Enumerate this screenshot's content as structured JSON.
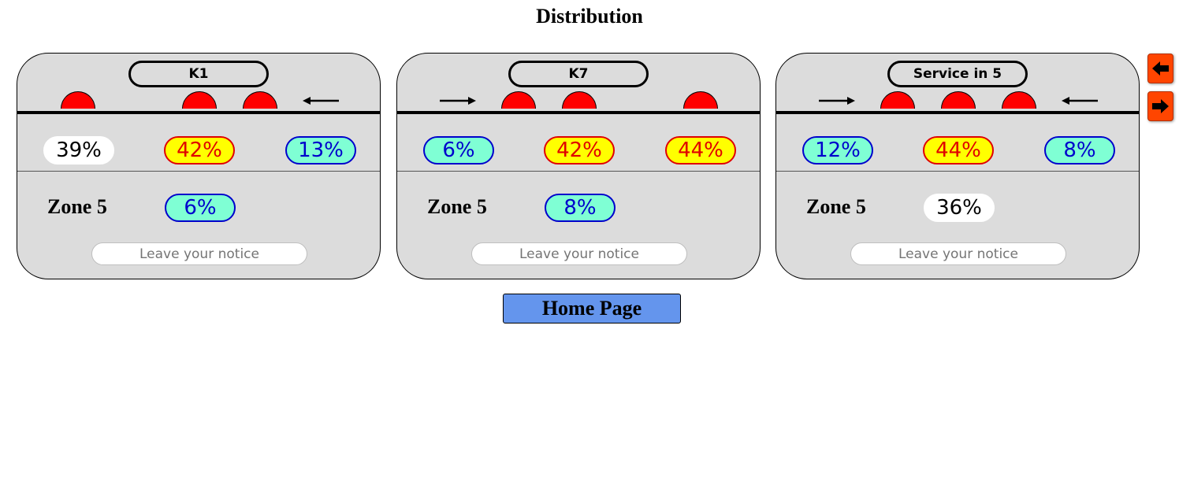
{
  "page": {
    "title": "Distribution"
  },
  "panels": [
    {
      "name": "K1",
      "row1": [
        "39%",
        "42%",
        "13%"
      ],
      "zone_label": "Zone 5",
      "zone_value": "6%",
      "notice_placeholder": "Leave your notice"
    },
    {
      "name": "K7",
      "row1": [
        "6%",
        "42%",
        "44%"
      ],
      "zone_label": "Zone 5",
      "zone_value": "8%",
      "notice_placeholder": "Leave your notice"
    },
    {
      "name": "Service in 5",
      "row1": [
        "12%",
        "44%",
        "8%"
      ],
      "zone_label": "Zone 5",
      "zone_value": "36%",
      "notice_placeholder": "Leave your notice"
    }
  ],
  "nav": {
    "prev_icon": "arrow-left-icon",
    "next_icon": "arrow-right-icon"
  },
  "home": {
    "label": "Home Page"
  },
  "colors": {
    "dome": "#ff0000",
    "cyan_fill": "#7fffd4",
    "yellow_fill": "#ffff00",
    "nav_button": "#ff4500",
    "home_button": "#6495ed",
    "panel_bg": "#dcdcdc"
  }
}
